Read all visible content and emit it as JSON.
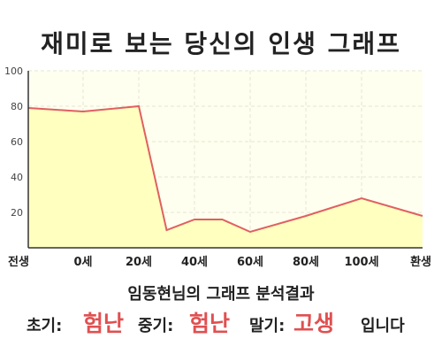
{
  "title": "재미로 보는 당신의 인생 그래프",
  "subtitle": "임동현님의 그래프 분석결과",
  "summary": {
    "early_label": "초기:",
    "early_value": "험난",
    "mid_label": "중기:",
    "mid_value": "험난",
    "late_label": "말기:",
    "late_value": "고생",
    "ending": "입니다"
  },
  "colors": {
    "line": "#e06060",
    "fill": "#ffffc0",
    "plot_bg": "#fffff0",
    "highlight": "#e05050"
  },
  "chart_data": {
    "type": "area",
    "title": "재미로 보는 당신의 인생 그래프",
    "xlabel": "",
    "ylabel": "",
    "ylim": [
      0,
      100
    ],
    "yticks": [
      20,
      40,
      60,
      80,
      100
    ],
    "xticks": [
      "전생",
      "0세",
      "20세",
      "40세",
      "60세",
      "80세",
      "100세",
      "환생"
    ],
    "grid": true,
    "series": [
      {
        "values": [
          {
            "x": "전생",
            "y": 79
          },
          {
            "x": "0세",
            "y": 77
          },
          {
            "x": "20세",
            "y": 80
          },
          {
            "x": "30세",
            "y": 10
          },
          {
            "x": "40세",
            "y": 16
          },
          {
            "x": "50세",
            "y": 16
          },
          {
            "x": "60세",
            "y": 9
          },
          {
            "x": "80세",
            "y": 18
          },
          {
            "x": "100세",
            "y": 28
          },
          {
            "x": "환생",
            "y": 18
          }
        ]
      }
    ]
  }
}
